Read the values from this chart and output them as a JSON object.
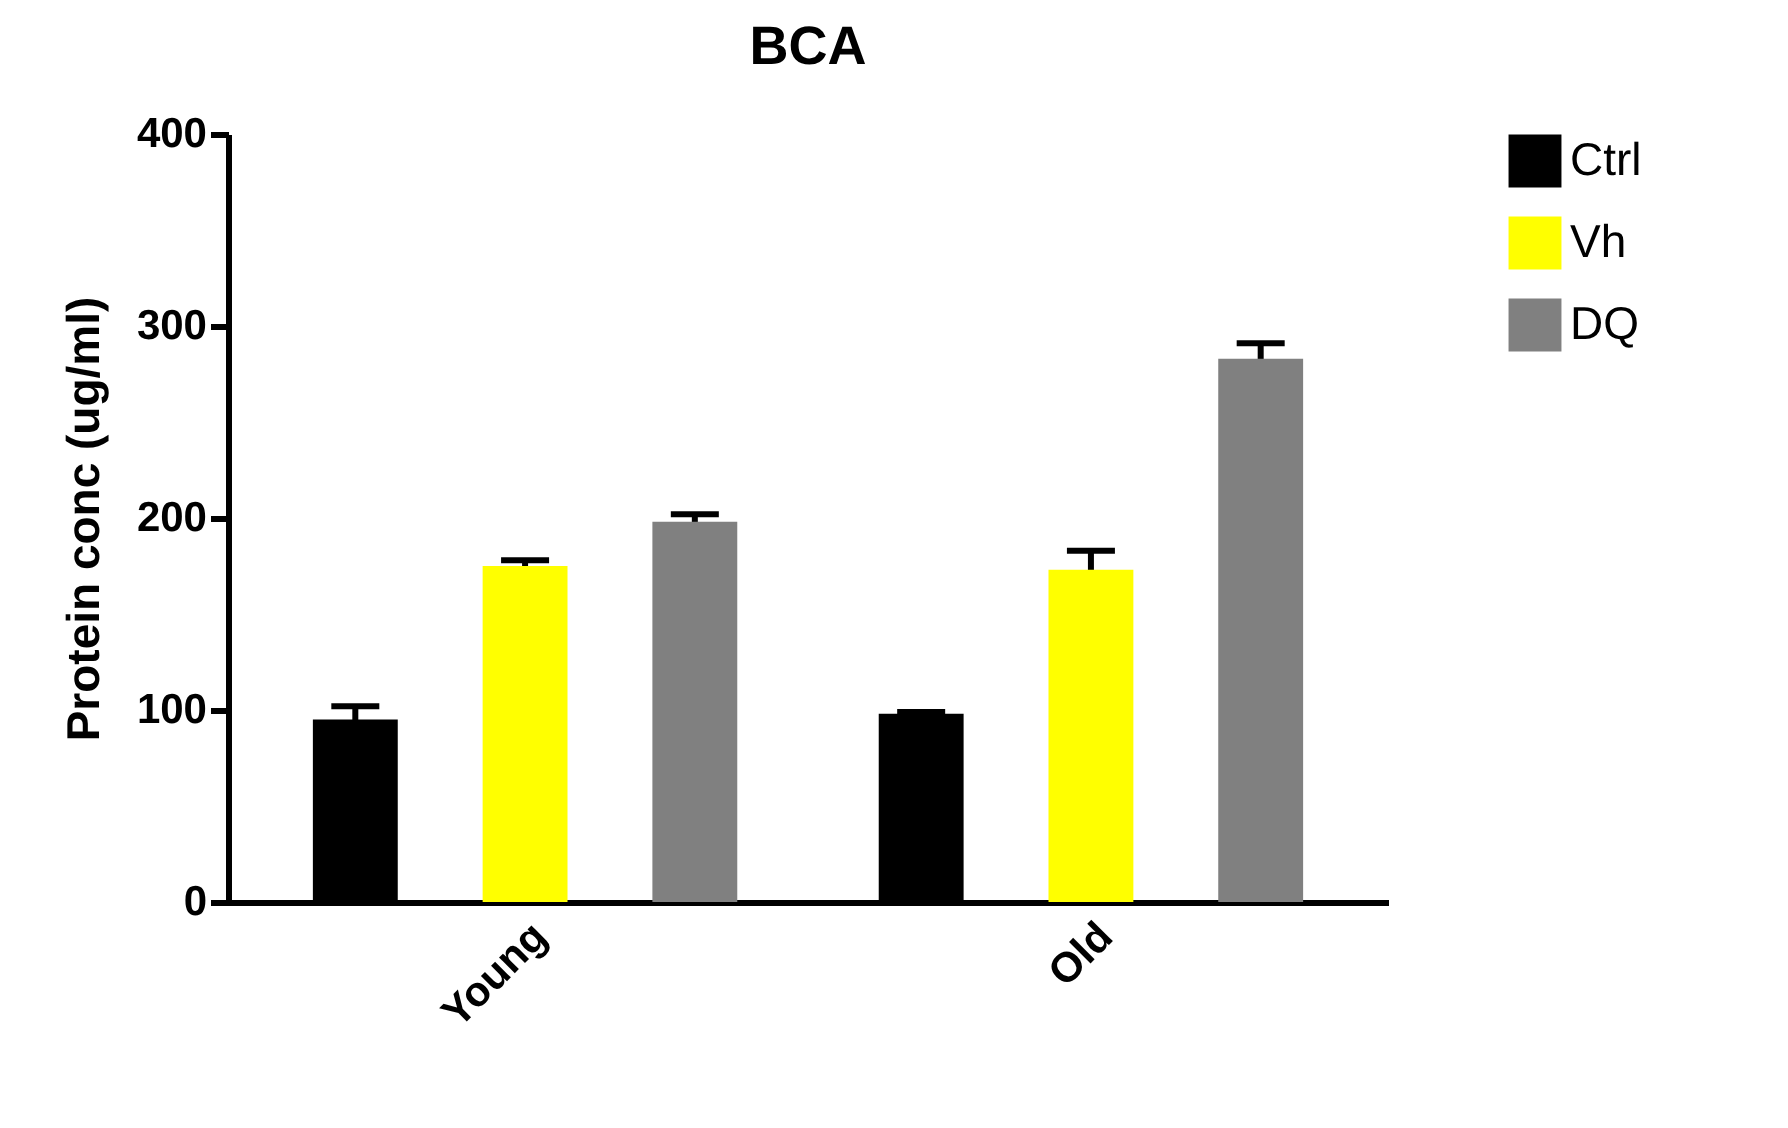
{
  "chart_data": {
    "type": "bar",
    "title": "BCA",
    "ylabel": "Protein conc (ug/ml)",
    "categories": [
      "Young",
      "Old"
    ],
    "series": [
      {
        "name": "Ctrl",
        "color": "#000000",
        "values": [
          95,
          98
        ],
        "errors": [
          7,
          1
        ]
      },
      {
        "name": "Vh",
        "color": "#ffff00",
        "values": [
          175,
          173
        ],
        "errors": [
          3,
          10
        ]
      },
      {
        "name": "DQ",
        "color": "#808080",
        "values": [
          198,
          283
        ],
        "errors": [
          4,
          8
        ]
      }
    ],
    "ylim": [
      0,
      400
    ],
    "yticks": [
      0,
      100,
      200,
      300,
      400
    ],
    "grid": false,
    "legend": "top right"
  }
}
